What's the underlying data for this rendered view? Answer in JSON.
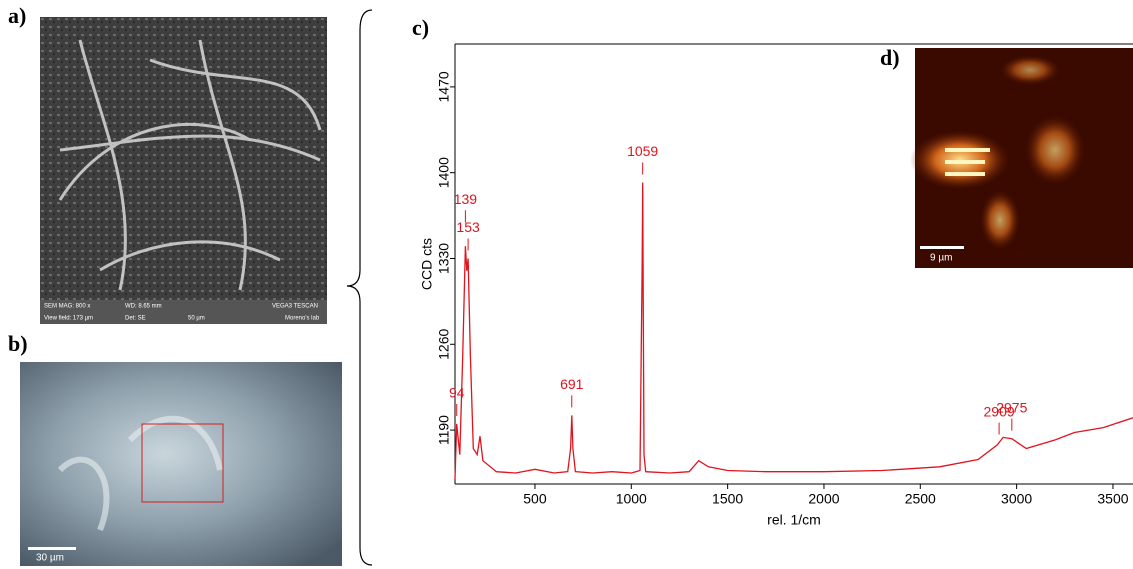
{
  "panels": {
    "a": {
      "label": "a)",
      "info": [
        "SEM MAG: 800 x",
        "WD: 8.65 mm",
        "VEGA3 TESCAN",
        "View field: 173 µm",
        "Det: SE",
        "50 µm",
        "Moreno's lab"
      ]
    },
    "b": {
      "label": "b)",
      "scale": "30 µm"
    },
    "c": {
      "label": "c)"
    },
    "d": {
      "label": "d)",
      "scale": "9 µm"
    }
  },
  "chart_data": {
    "type": "line",
    "x_label": "rel. 1/cm",
    "y_label": "CCD cts",
    "color": "#e0141e",
    "x": [
      85,
      94,
      110,
      125,
      139,
      146,
      153,
      165,
      180,
      200,
      215,
      230,
      300,
      400,
      500,
      600,
      670,
      685,
      691,
      697,
      710,
      800,
      900,
      1000,
      1045,
      1052,
      1056,
      1059,
      1062,
      1066,
      1075,
      1200,
      1300,
      1350,
      1400,
      1500,
      1700,
      2000,
      2300,
      2600,
      2800,
      2900,
      2930,
      2975,
      3050,
      3200,
      3300,
      3450,
      3604
    ],
    "values": [
      1150,
      1195,
      1170,
      1250,
      1340,
      1320,
      1330,
      1250,
      1175,
      1170,
      1185,
      1165,
      1156,
      1155,
      1158,
      1155,
      1156,
      1175,
      1202,
      1175,
      1156,
      1155,
      1156,
      1155,
      1157,
      1260,
      1320,
      1392,
      1300,
      1170,
      1156,
      1155,
      1156,
      1165,
      1160,
      1157,
      1156,
      1156,
      1157,
      1160,
      1166,
      1178,
      1184,
      1183,
      1175,
      1182,
      1188,
      1192,
      1200
    ],
    "peaks": [
      94,
      139,
      153,
      691,
      1059,
      2909,
      2975
    ],
    "xlim": [
      85,
      3604
    ],
    "ylim": [
      1146,
      1505
    ],
    "xticks": [
      500,
      1000,
      1500,
      2000,
      2500,
      3000,
      3500
    ],
    "yticks": [
      1190,
      1260,
      1330,
      1400,
      1470
    ]
  }
}
